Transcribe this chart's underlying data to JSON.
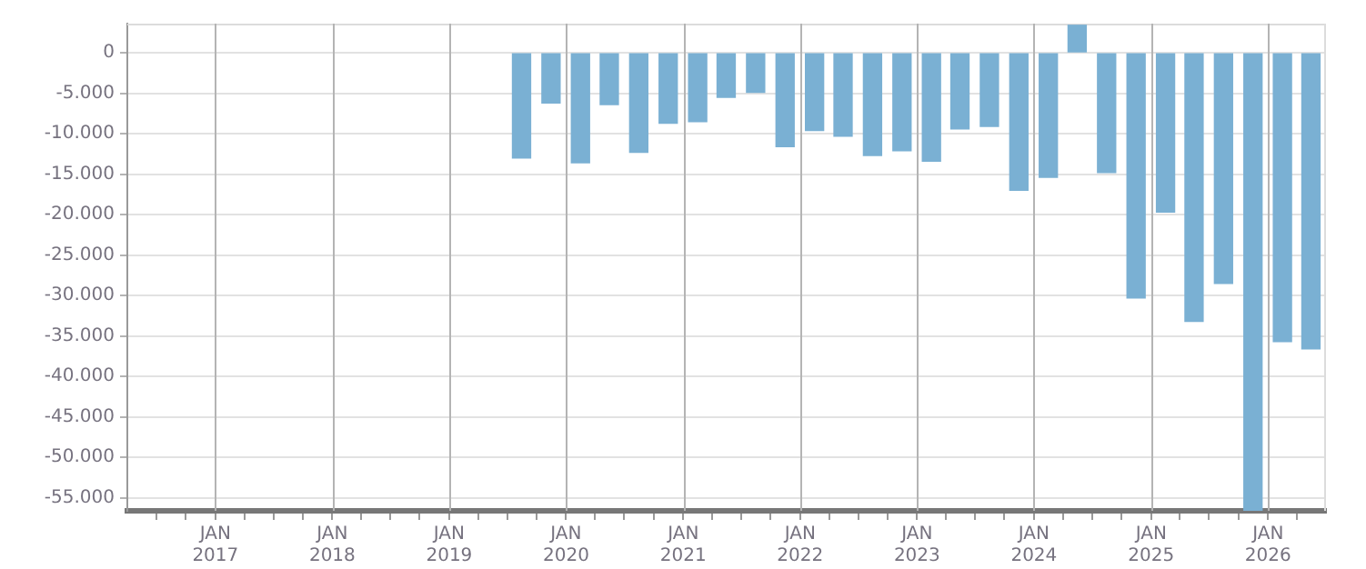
{
  "chart_data": {
    "type": "bar",
    "color": "#7ab0d3",
    "x": [
      "2019-08-15",
      "2019-11-15",
      "2020-02-15",
      "2020-05-15",
      "2020-08-15",
      "2020-11-15",
      "2021-02-15",
      "2021-05-15",
      "2021-08-15",
      "2021-11-15",
      "2022-02-15",
      "2022-05-15",
      "2022-08-15",
      "2022-11-15",
      "2023-02-15",
      "2023-05-15",
      "2023-08-15",
      "2023-11-15",
      "2024-02-15",
      "2024-05-15",
      "2024-08-15",
      "2024-11-15",
      "2025-02-15",
      "2025-05-15",
      "2025-08-15",
      "2025-11-15",
      "2026-02-15",
      "2026-05-15"
    ],
    "values": [
      -13000,
      -6200,
      -13600,
      -6400,
      -12300,
      -8700,
      -8500,
      -5500,
      -4900,
      -11600,
      -9600,
      -10300,
      -12700,
      -12100,
      -13400,
      -9400,
      -9100,
      -17000,
      -15400,
      3400,
      -14800,
      -30300,
      -19700,
      -33200,
      -28500,
      -56600,
      -35700,
      -36600
    ],
    "xlim": [
      "2016-04-01",
      "2026-07-01"
    ],
    "xticks": [
      {
        "value": "2016-07-01",
        "label": null
      },
      {
        "value": "2016-10-01",
        "label": null
      },
      {
        "value": "2017-01-01",
        "label": "JAN 2017"
      },
      {
        "value": "2017-04-01",
        "label": null
      },
      {
        "value": "2017-07-01",
        "label": null
      },
      {
        "value": "2017-10-01",
        "label": null
      },
      {
        "value": "2018-01-01",
        "label": "JAN 2018"
      },
      {
        "value": "2018-04-01",
        "label": null
      },
      {
        "value": "2018-07-01",
        "label": null
      },
      {
        "value": "2018-10-01",
        "label": null
      },
      {
        "value": "2019-01-01",
        "label": "JAN 2019"
      },
      {
        "value": "2019-04-01",
        "label": null
      },
      {
        "value": "2019-07-01",
        "label": null
      },
      {
        "value": "2019-10-01",
        "label": null
      },
      {
        "value": "2020-01-01",
        "label": "JAN 2020"
      },
      {
        "value": "2020-04-01",
        "label": null
      },
      {
        "value": "2020-07-01",
        "label": null
      },
      {
        "value": "2020-10-01",
        "label": null
      },
      {
        "value": "2021-01-01",
        "label": "JAN 2021"
      },
      {
        "value": "2021-04-01",
        "label": null
      },
      {
        "value": "2021-07-01",
        "label": null
      },
      {
        "value": "2021-10-01",
        "label": null
      },
      {
        "value": "2022-01-01",
        "label": "JAN 2022"
      },
      {
        "value": "2022-04-01",
        "label": null
      },
      {
        "value": "2022-07-01",
        "label": null
      },
      {
        "value": "2022-10-01",
        "label": null
      },
      {
        "value": "2023-01-01",
        "label": "JAN 2023"
      },
      {
        "value": "2023-04-01",
        "label": null
      },
      {
        "value": "2023-07-01",
        "label": null
      },
      {
        "value": "2023-10-01",
        "label": null
      },
      {
        "value": "2024-01-01",
        "label": "JAN 2024"
      },
      {
        "value": "2024-04-01",
        "label": null
      },
      {
        "value": "2024-07-01",
        "label": null
      },
      {
        "value": "2024-10-01",
        "label": null
      },
      {
        "value": "2025-01-01",
        "label": "JAN 2025"
      },
      {
        "value": "2025-04-01",
        "label": null
      },
      {
        "value": "2025-07-01",
        "label": null
      },
      {
        "value": "2025-10-01",
        "label": null
      },
      {
        "value": "2026-01-01",
        "label": "JAN 2026"
      },
      {
        "value": "2026-04-01",
        "label": null
      }
    ],
    "ylim": [
      -56600,
      3600
    ],
    "yticks": [
      0,
      {
        "value": -5000,
        "label": "-5.000"
      },
      {
        "value": -10000,
        "label": "-10.000"
      },
      {
        "value": -15000,
        "label": "-15.000"
      },
      {
        "value": -20000,
        "label": "-20.000"
      },
      {
        "value": -25000,
        "label": "-25.000"
      },
      {
        "value": -30000,
        "label": "-30.000"
      },
      {
        "value": -35000,
        "label": "-35.000"
      },
      {
        "value": -40000,
        "label": "-40.000"
      },
      {
        "value": -45000,
        "label": "-45.000"
      },
      {
        "value": -50000,
        "label": "-50.000"
      },
      {
        "value": -55000,
        "label": "-55.000"
      }
    ],
    "grid": true,
    "legend": false
  }
}
